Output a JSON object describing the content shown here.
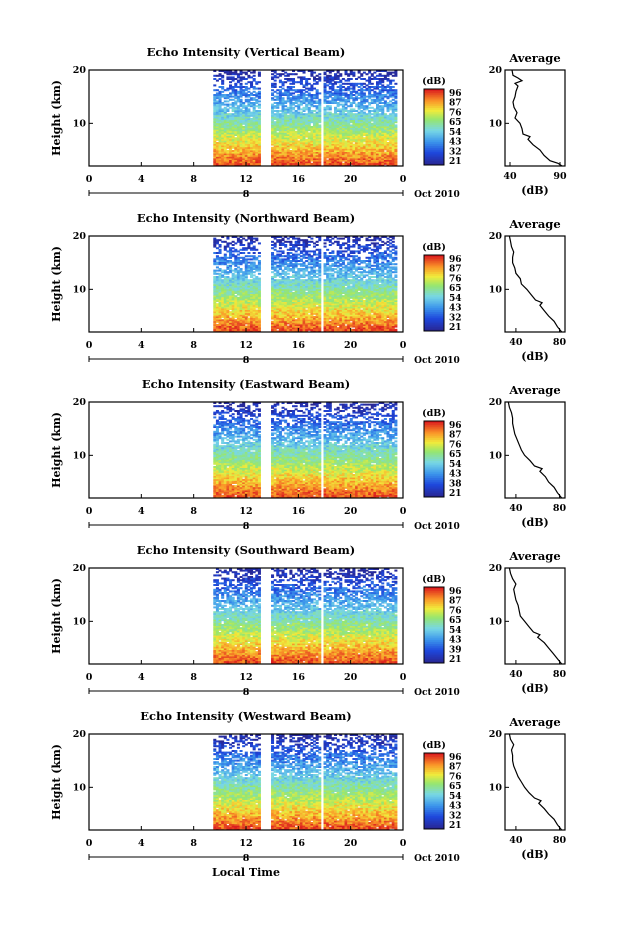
{
  "chart_data": [
    {
      "type": "heatmap",
      "title": "Echo Intensity (Vertical Beam)",
      "ylabel": "Height (km)",
      "xlim": [
        0,
        24
      ],
      "ylim": [
        2,
        20
      ],
      "xticks": [
        "0",
        "4",
        "8",
        "12",
        "16",
        "20",
        "0"
      ],
      "yticks": [
        "10",
        "20"
      ],
      "date_marker": "8",
      "date_label": "Oct 2010",
      "data_start_hour": 9.5,
      "gaps_hours": [
        [
          13.0,
          13.8
        ],
        [
          17.6,
          17.9
        ]
      ],
      "colorbar": {
        "unit": "(dB)",
        "ticks": [
          "96",
          "87",
          "76",
          "65",
          "54",
          "43",
          "32",
          "21"
        ]
      },
      "average": {
        "title": "Average",
        "xlabel": "(dB)",
        "xticks": [
          "40",
          "90"
        ],
        "xlim": [
          35,
          95
        ],
        "yticks": [
          "10",
          "20"
        ],
        "profile": [
          [
            92,
            2
          ],
          [
            88,
            2.5
          ],
          [
            80,
            3
          ],
          [
            74,
            4
          ],
          [
            70,
            5
          ],
          [
            63,
            6
          ],
          [
            58,
            7
          ],
          [
            60,
            7.5
          ],
          [
            53,
            8
          ],
          [
            52,
            9
          ],
          [
            50,
            10
          ],
          [
            45,
            11
          ],
          [
            47,
            12
          ],
          [
            44,
            13
          ],
          [
            43,
            14
          ],
          [
            45,
            15
          ],
          [
            46,
            16
          ],
          [
            48,
            17
          ],
          [
            45,
            17.5
          ],
          [
            52,
            18
          ],
          [
            48,
            18.5
          ],
          [
            43,
            19
          ],
          [
            42,
            20
          ]
        ]
      }
    },
    {
      "type": "heatmap",
      "title": "Echo Intensity (Northward Beam)",
      "ylabel": "Height (km)",
      "xlim": [
        0,
        24
      ],
      "ylim": [
        2,
        20
      ],
      "xticks": [
        "0",
        "4",
        "8",
        "12",
        "16",
        "20",
        "0"
      ],
      "yticks": [
        "10",
        "20"
      ],
      "date_marker": "8",
      "date_label": "Oct 2010",
      "data_start_hour": 9.5,
      "gaps_hours": [
        [
          13.0,
          13.8
        ],
        [
          17.6,
          17.9
        ]
      ],
      "colorbar": {
        "unit": "(dB)",
        "ticks": [
          "96",
          "87",
          "76",
          "65",
          "54",
          "43",
          "32",
          "21"
        ]
      },
      "average": {
        "title": "Average",
        "xlabel": "(dB)",
        "xticks": [
          "40",
          "80"
        ],
        "xlim": [
          30,
          85
        ],
        "yticks": [
          "10",
          "20"
        ],
        "profile": [
          [
            82,
            2
          ],
          [
            78,
            3
          ],
          [
            75,
            4
          ],
          [
            70,
            5
          ],
          [
            66,
            6
          ],
          [
            62,
            7
          ],
          [
            64,
            7.5
          ],
          [
            58,
            8
          ],
          [
            54,
            9
          ],
          [
            50,
            10
          ],
          [
            45,
            11
          ],
          [
            44,
            12
          ],
          [
            40,
            13
          ],
          [
            39,
            14
          ],
          [
            37,
            15
          ],
          [
            37,
            16
          ],
          [
            38,
            17
          ],
          [
            36,
            18
          ],
          [
            35,
            19
          ],
          [
            34,
            20
          ]
        ]
      }
    },
    {
      "type": "heatmap",
      "title": "Echo Intensity (Eastward Beam)",
      "ylabel": "Height (km)",
      "xlim": [
        0,
        24
      ],
      "ylim": [
        2,
        20
      ],
      "xticks": [
        "0",
        "4",
        "8",
        "12",
        "16",
        "20",
        "0"
      ],
      "yticks": [
        "10",
        "20"
      ],
      "date_marker": "8",
      "date_label": "Oct 2010",
      "data_start_hour": 9.5,
      "gaps_hours": [
        [
          13.0,
          13.8
        ],
        [
          17.6,
          17.9
        ]
      ],
      "colorbar": {
        "unit": "(dB)",
        "ticks": [
          "96",
          "87",
          "76",
          "65",
          "54",
          "43",
          "38",
          "21"
        ]
      },
      "average": {
        "title": "Average",
        "xlabel": "(dB)",
        "xticks": [
          "40",
          "80"
        ],
        "xlim": [
          30,
          85
        ],
        "yticks": [
          "10",
          "20"
        ],
        "profile": [
          [
            82,
            2
          ],
          [
            78,
            3
          ],
          [
            75,
            4
          ],
          [
            70,
            5
          ],
          [
            67,
            6
          ],
          [
            62,
            7
          ],
          [
            64,
            7.5
          ],
          [
            57,
            8
          ],
          [
            53,
            9
          ],
          [
            48,
            10
          ],
          [
            45,
            11
          ],
          [
            43,
            12
          ],
          [
            41,
            13
          ],
          [
            39,
            14
          ],
          [
            38,
            15
          ],
          [
            37,
            16
          ],
          [
            37,
            17
          ],
          [
            36,
            18
          ],
          [
            34,
            19
          ],
          [
            33,
            20
          ]
        ]
      }
    },
    {
      "type": "heatmap",
      "title": "Echo Intensity (Southward Beam)",
      "ylabel": "Height (km)",
      "xlim": [
        0,
        24
      ],
      "ylim": [
        2,
        20
      ],
      "xticks": [
        "0",
        "4",
        "8",
        "12",
        "16",
        "20",
        "0"
      ],
      "yticks": [
        "10",
        "20"
      ],
      "date_marker": "8",
      "date_label": "Oct 2010",
      "data_start_hour": 9.5,
      "gaps_hours": [
        [
          13.0,
          13.8
        ],
        [
          17.6,
          17.9
        ]
      ],
      "colorbar": {
        "unit": "(dB)",
        "ticks": [
          "96",
          "87",
          "76",
          "65",
          "54",
          "43",
          "39",
          "21"
        ]
      },
      "average": {
        "title": "Average",
        "xlabel": "(dB)",
        "xticks": [
          "40",
          "80"
        ],
        "xlim": [
          30,
          85
        ],
        "yticks": [
          "10",
          "20"
        ],
        "profile": [
          [
            82,
            2
          ],
          [
            78,
            3
          ],
          [
            74,
            4
          ],
          [
            70,
            5
          ],
          [
            66,
            6
          ],
          [
            60,
            7
          ],
          [
            62,
            7.5
          ],
          [
            56,
            8
          ],
          [
            52,
            9
          ],
          [
            48,
            10
          ],
          [
            44,
            11
          ],
          [
            43,
            12
          ],
          [
            42,
            13
          ],
          [
            40,
            14
          ],
          [
            39,
            15
          ],
          [
            38,
            16
          ],
          [
            40,
            17
          ],
          [
            37,
            18
          ],
          [
            35,
            19
          ],
          [
            34,
            20
          ]
        ]
      }
    },
    {
      "type": "heatmap",
      "title": "Echo Intensity (Westward Beam)",
      "ylabel": "Height (km)",
      "xlabel": "Local Time",
      "xlim": [
        0,
        24
      ],
      "ylim": [
        2,
        20
      ],
      "xticks": [
        "0",
        "4",
        "8",
        "12",
        "16",
        "20",
        "0"
      ],
      "yticks": [
        "10",
        "20"
      ],
      "date_marker": "8",
      "date_label": "Oct 2010",
      "data_start_hour": 9.5,
      "gaps_hours": [
        [
          13.0,
          13.8
        ],
        [
          17.6,
          17.9
        ]
      ],
      "colorbar": {
        "unit": "(dB)",
        "ticks": [
          "96",
          "87",
          "76",
          "65",
          "54",
          "43",
          "32",
          "21"
        ]
      },
      "average": {
        "title": "Average",
        "xlabel": "(dB)",
        "xticks": [
          "40",
          "80"
        ],
        "xlim": [
          30,
          85
        ],
        "yticks": [
          "10",
          "20"
        ],
        "profile": [
          [
            82,
            2
          ],
          [
            78,
            3
          ],
          [
            75,
            4
          ],
          [
            70,
            5
          ],
          [
            66,
            6
          ],
          [
            61,
            7
          ],
          [
            63,
            7.5
          ],
          [
            57,
            8
          ],
          [
            52,
            9
          ],
          [
            48,
            10
          ],
          [
            45,
            11
          ],
          [
            42,
            12
          ],
          [
            40,
            13
          ],
          [
            38,
            14
          ],
          [
            37,
            15
          ],
          [
            37,
            16
          ],
          [
            36,
            17
          ],
          [
            38,
            18
          ],
          [
            35,
            19
          ],
          [
            34,
            20
          ]
        ]
      }
    }
  ]
}
